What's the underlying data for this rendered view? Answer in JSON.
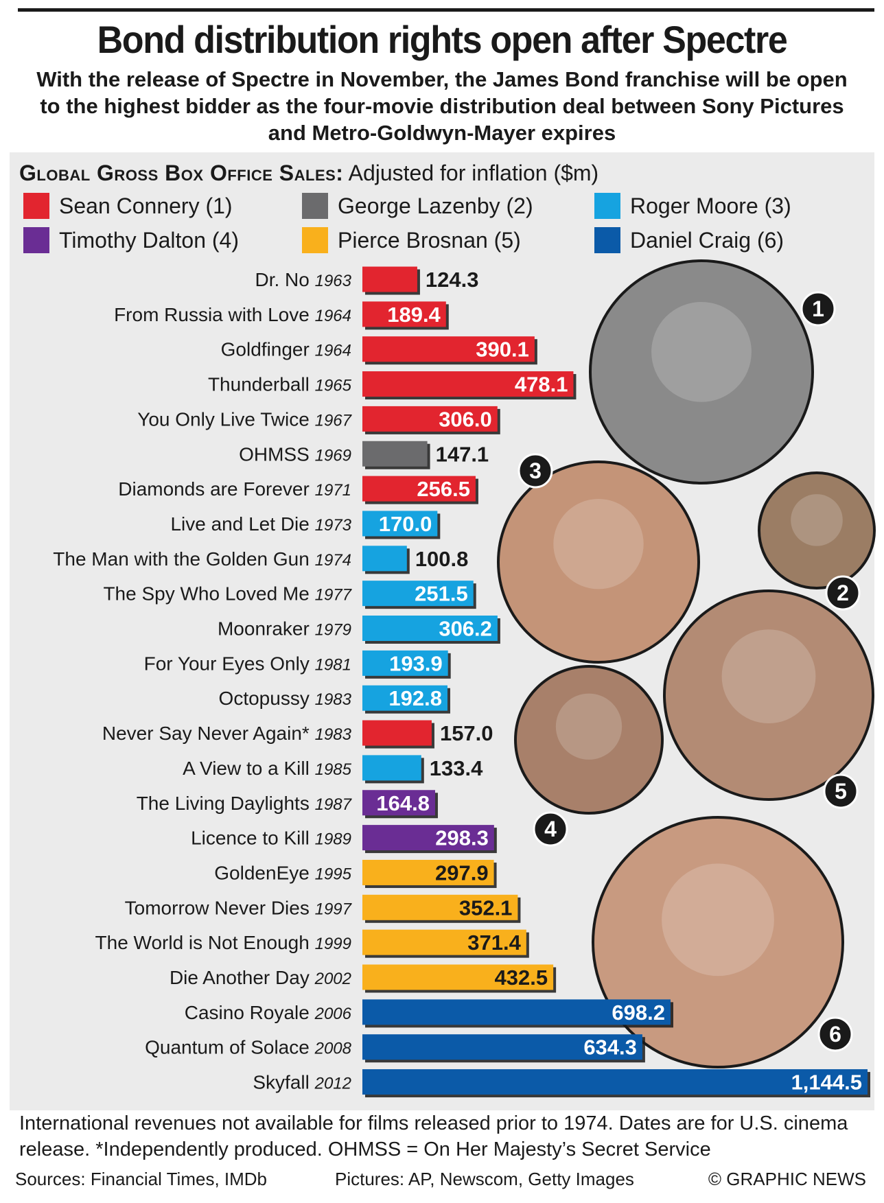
{
  "title": "Bond distribution rights open after Spectre",
  "subtitle": "With the release of Spectre in November, the James Bond franchise will be open to the highest bidder as the four-movie distribution deal between Sony Pictures and Metro-Goldwyn-Mayer expires",
  "heading": {
    "bold": "Global Gross Box Office Sales:",
    "normal": " Adjusted for inflation ($m)"
  },
  "legend": [
    {
      "label": "Sean Connery (1)",
      "color": "#e2252f"
    },
    {
      "label": "George Lazenby (2)",
      "color": "#6b6b6d"
    },
    {
      "label": "Roger Moore (3)",
      "color": "#16a3e0"
    },
    {
      "label": "Timothy Dalton (4)",
      "color": "#6a2d94"
    },
    {
      "label": "Pierce Brosnan (5)",
      "color": "#f9b01c"
    },
    {
      "label": "Daniel Craig (6)",
      "color": "#0b5aa8"
    }
  ],
  "chart_data": {
    "type": "bar",
    "orientation": "horizontal",
    "unit": "$m",
    "categories": [
      {
        "film": "Dr. No",
        "year": "1963"
      },
      {
        "film": "From Russia with Love",
        "year": "1964"
      },
      {
        "film": "Goldfinger",
        "year": "1964"
      },
      {
        "film": "Thunderball",
        "year": "1965"
      },
      {
        "film": "You Only Live Twice",
        "year": "1967"
      },
      {
        "film": "OHMSS",
        "year": "1969"
      },
      {
        "film": "Diamonds are Forever",
        "year": "1971"
      },
      {
        "film": "Live and Let Die",
        "year": "1973"
      },
      {
        "film": "The Man with the Golden Gun",
        "year": "1974"
      },
      {
        "film": "The Spy Who Loved Me",
        "year": "1977"
      },
      {
        "film": "Moonraker",
        "year": "1979"
      },
      {
        "film": "For Your Eyes Only",
        "year": "1981"
      },
      {
        "film": "Octopussy",
        "year": "1983"
      },
      {
        "film": "Never Say Never Again*",
        "year": "1983"
      },
      {
        "film": "A View to a Kill",
        "year": "1985"
      },
      {
        "film": "The Living Daylights",
        "year": "1987"
      },
      {
        "film": "Licence to Kill",
        "year": "1989"
      },
      {
        "film": "GoldenEye",
        "year": "1995"
      },
      {
        "film": "Tomorrow Never Dies",
        "year": "1997"
      },
      {
        "film": "The World is Not Enough",
        "year": "1999"
      },
      {
        "film": "Die Another Day",
        "year": "2002"
      },
      {
        "film": "Casino Royale",
        "year": "2006"
      },
      {
        "film": "Quantum of Solace",
        "year": "2008"
      },
      {
        "film": "Skyfall",
        "year": "2012"
      }
    ],
    "values": [
      124.3,
      189.4,
      390.1,
      478.1,
      306.0,
      147.1,
      256.5,
      170.0,
      100.8,
      251.5,
      306.2,
      193.9,
      192.8,
      157.0,
      133.4,
      164.8,
      298.3,
      297.9,
      352.1,
      371.4,
      432.5,
      698.2,
      634.3,
      1144.5
    ],
    "value_labels": [
      "124.3",
      "189.4",
      "390.1",
      "478.1",
      "306.0",
      "147.1",
      "256.5",
      "170.0",
      "100.8",
      "251.5",
      "306.2",
      "193.9",
      "192.8",
      "157.0",
      "133.4",
      "164.8",
      "298.3",
      "297.9",
      "352.1",
      "371.4",
      "432.5",
      "698.2",
      "634.3",
      "1,144.5"
    ],
    "actor": [
      1,
      1,
      1,
      1,
      1,
      2,
      1,
      3,
      3,
      3,
      3,
      3,
      3,
      1,
      3,
      4,
      4,
      5,
      5,
      5,
      5,
      6,
      6,
      6
    ],
    "xlim": [
      0,
      1144.5
    ]
  },
  "portraits": [
    {
      "number": "1",
      "name": "Sean Connery"
    },
    {
      "number": "2",
      "name": "George Lazenby"
    },
    {
      "number": "3",
      "name": "Roger Moore"
    },
    {
      "number": "4",
      "name": "Timothy Dalton"
    },
    {
      "number": "5",
      "name": "Pierce Brosnan"
    },
    {
      "number": "6",
      "name": "Daniel Craig"
    }
  ],
  "footnote": "International revenues not available for films released prior to 1974. Dates are for U.S. cinema release. *Independently produced. OHMSS = On Her Majesty’s Secret Service",
  "sources": "Sources: Financial Times, IMDb",
  "pictures": "Pictures: AP, Newscom, Getty Images",
  "credit": "© GRAPHIC NEWS"
}
